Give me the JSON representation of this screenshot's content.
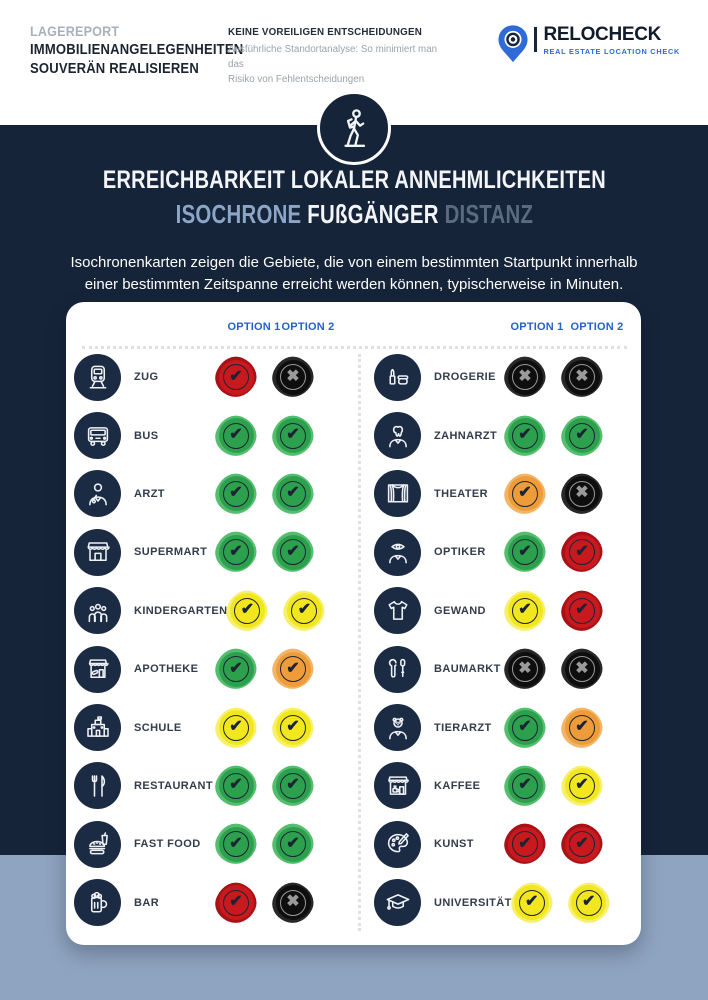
{
  "masthead": {
    "report_label": "LAGEREPORT",
    "report_title_line1": "IMMOBILIENANGELEGENHEITEN",
    "report_title_line2": "SOUVERÄN REALISIEREN",
    "tagline_title": "KEINE VOREILIGEN ENTSCHEIDUNGEN",
    "tagline_line1": "Ausführliche Standortanalyse: So minimiert man das",
    "tagline_line2": "Risiko von Fehlentscheidungen",
    "brand": {
      "name": "RELOCHECK",
      "subtitle": "REAL ESTATE LOCATION CHECK"
    }
  },
  "hero": {
    "badge_icon": "walking-person-icon",
    "title_line1": "ERREICHBARKEIT LOKALER ANNEHMLICHKEITEN",
    "title_line2_part1": "ISOCHRONE",
    "title_line2_part2": "FUßGÄNGER",
    "title_line2_part3": "DISTANZ",
    "description_line1": "Isochronenkarten zeigen die Gebiete, die von einem bestimmten Startpunkt innerhalb",
    "description_line2": "einer bestimmten Zeitspanne erreicht werden können, typischerweise in Minuten."
  },
  "matrix": {
    "header": {
      "option1": "OPTION 1",
      "option2": "OPTION 2"
    },
    "marks": {
      "check": "✔",
      "cross": "✖"
    },
    "status_colors": {
      "green": "#2da04e",
      "yellow": "#f2e71e",
      "orange": "#ee9c3a",
      "red": "#c8191f",
      "black": "#0e0e0e"
    },
    "left_rows": [
      {
        "label": "ZUG",
        "icon": "train-icon",
        "option1": "red-check",
        "option2": "black-cross"
      },
      {
        "label": "BUS",
        "icon": "bus-icon",
        "option1": "green-check",
        "option2": "green-check"
      },
      {
        "label": "ARZT",
        "icon": "doctor-icon",
        "option1": "green-check",
        "option2": "green-check"
      },
      {
        "label": "SUPERMART",
        "icon": "supermarket-icon",
        "option1": "green-check",
        "option2": "green-check"
      },
      {
        "label": "KINDERGARTEN",
        "icon": "kindergarten-icon",
        "option1": "yellow-check",
        "option2": "yellow-check"
      },
      {
        "label": "APOTHEKE",
        "icon": "pharmacy-icon",
        "option1": "green-check",
        "option2": "orange-check"
      },
      {
        "label": "SCHULE",
        "icon": "school-icon",
        "option1": "yellow-check",
        "option2": "yellow-check"
      },
      {
        "label": "RESTAURANT",
        "icon": "restaurant-icon",
        "option1": "green-check",
        "option2": "green-check"
      },
      {
        "label": "FAST FOOD",
        "icon": "fastfood-icon",
        "option1": "green-check",
        "option2": "green-check"
      },
      {
        "label": "BAR",
        "icon": "beer-icon",
        "option1": "red-check",
        "option2": "black-cross"
      }
    ],
    "right_rows": [
      {
        "label": "DROGERIE",
        "icon": "drugstore-icon",
        "option1": "black-cross",
        "option2": "black-cross"
      },
      {
        "label": "ZAHNARZT",
        "icon": "dentist-icon",
        "option1": "green-check",
        "option2": "green-check"
      },
      {
        "label": "THEATER",
        "icon": "theater-icon",
        "option1": "orange-check",
        "option2": "black-cross"
      },
      {
        "label": "OPTIKER",
        "icon": "optician-icon",
        "option1": "green-check",
        "option2": "red-check"
      },
      {
        "label": "GEWAND",
        "icon": "clothing-icon",
        "option1": "yellow-check",
        "option2": "red-check"
      },
      {
        "label": "BAUMARKT",
        "icon": "hardware-icon",
        "option1": "black-cross",
        "option2": "black-cross"
      },
      {
        "label": "TIERARZT",
        "icon": "vet-icon",
        "option1": "green-check",
        "option2": "orange-check"
      },
      {
        "label": "KAFFEE",
        "icon": "cafe-icon",
        "option1": "green-check",
        "option2": "yellow-check"
      },
      {
        "label": "KUNST",
        "icon": "art-icon",
        "option1": "red-check",
        "option2": "red-check"
      },
      {
        "label": "UNIVERSITÄT",
        "icon": "university-icon",
        "option1": "yellow-check",
        "option2": "yellow-check"
      }
    ]
  },
  "colors": {
    "navy_background": "#16243a",
    "icon_circle": "#1c2b44",
    "bottom_band": "#8fa4c0",
    "option_blue": "#2461c9",
    "brand_blue": "#2e6bd6"
  }
}
